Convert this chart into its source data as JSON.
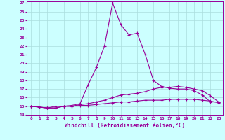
{
  "line1": [
    15.0,
    14.9,
    14.8,
    15.0,
    15.0,
    15.1,
    15.3,
    17.5,
    19.5,
    22.0,
    27.0,
    24.5,
    23.3,
    23.5,
    21.0,
    18.0,
    17.3,
    17.1,
    17.0,
    17.0,
    16.8,
    16.3,
    15.5,
    15.5
  ],
  "line2": [
    15.0,
    14.9,
    14.8,
    14.8,
    15.0,
    15.0,
    15.2,
    15.3,
    15.5,
    15.7,
    16.0,
    16.3,
    16.4,
    16.5,
    16.7,
    17.0,
    17.2,
    17.2,
    17.3,
    17.2,
    17.0,
    16.8,
    16.2,
    15.5
  ],
  "line3": [
    15.0,
    14.9,
    14.8,
    14.8,
    15.0,
    15.0,
    15.1,
    15.1,
    15.2,
    15.3,
    15.4,
    15.5,
    15.5,
    15.6,
    15.7,
    15.7,
    15.7,
    15.8,
    15.8,
    15.8,
    15.8,
    15.7,
    15.6,
    15.4
  ],
  "line_color": "#990099",
  "bg_color": "#ccffff",
  "grid_color": "#aadddd",
  "xlabel": "Windchill (Refroidissement éolien,°C)",
  "ylim_min": 14,
  "ylim_max": 27,
  "xlim_min": -0.5,
  "xlim_max": 23.5
}
